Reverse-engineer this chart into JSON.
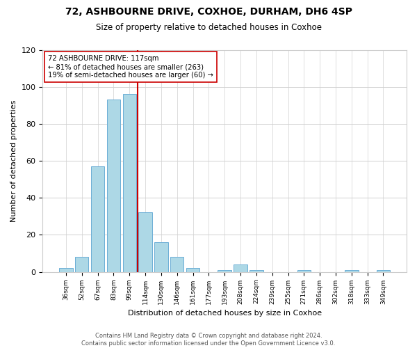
{
  "title": "72, ASHBOURNE DRIVE, COXHOE, DURHAM, DH6 4SP",
  "subtitle": "Size of property relative to detached houses in Coxhoe",
  "xlabel": "Distribution of detached houses by size in Coxhoe",
  "ylabel": "Number of detached properties",
  "categories": [
    "36sqm",
    "52sqm",
    "67sqm",
    "83sqm",
    "99sqm",
    "114sqm",
    "130sqm",
    "146sqm",
    "161sqm",
    "177sqm",
    "193sqm",
    "208sqm",
    "224sqm",
    "239sqm",
    "255sqm",
    "271sqm",
    "286sqm",
    "302sqm",
    "318sqm",
    "333sqm",
    "349sqm"
  ],
  "values": [
    2,
    8,
    57,
    93,
    96,
    32,
    16,
    8,
    2,
    0,
    1,
    4,
    1,
    0,
    0,
    1,
    0,
    0,
    1,
    0,
    1
  ],
  "bar_color": "#add8e6",
  "bar_edge_color": "#6baed6",
  "vline_color": "#cc0000",
  "annotation_title": "72 ASHBOURNE DRIVE: 117sqm",
  "annotation_line1": "← 81% of detached houses are smaller (263)",
  "annotation_line2": "19% of semi-detached houses are larger (60) →",
  "annotation_box_color": "#ffffff",
  "annotation_box_edge": "#cc0000",
  "ylim": [
    0,
    120
  ],
  "yticks": [
    0,
    20,
    40,
    60,
    80,
    100,
    120
  ],
  "footer1": "Contains HM Land Registry data © Crown copyright and database right 2024.",
  "footer2": "Contains public sector information licensed under the Open Government Licence v3.0.",
  "bg_color": "#ffffff",
  "grid_color": "#d0d0d0"
}
